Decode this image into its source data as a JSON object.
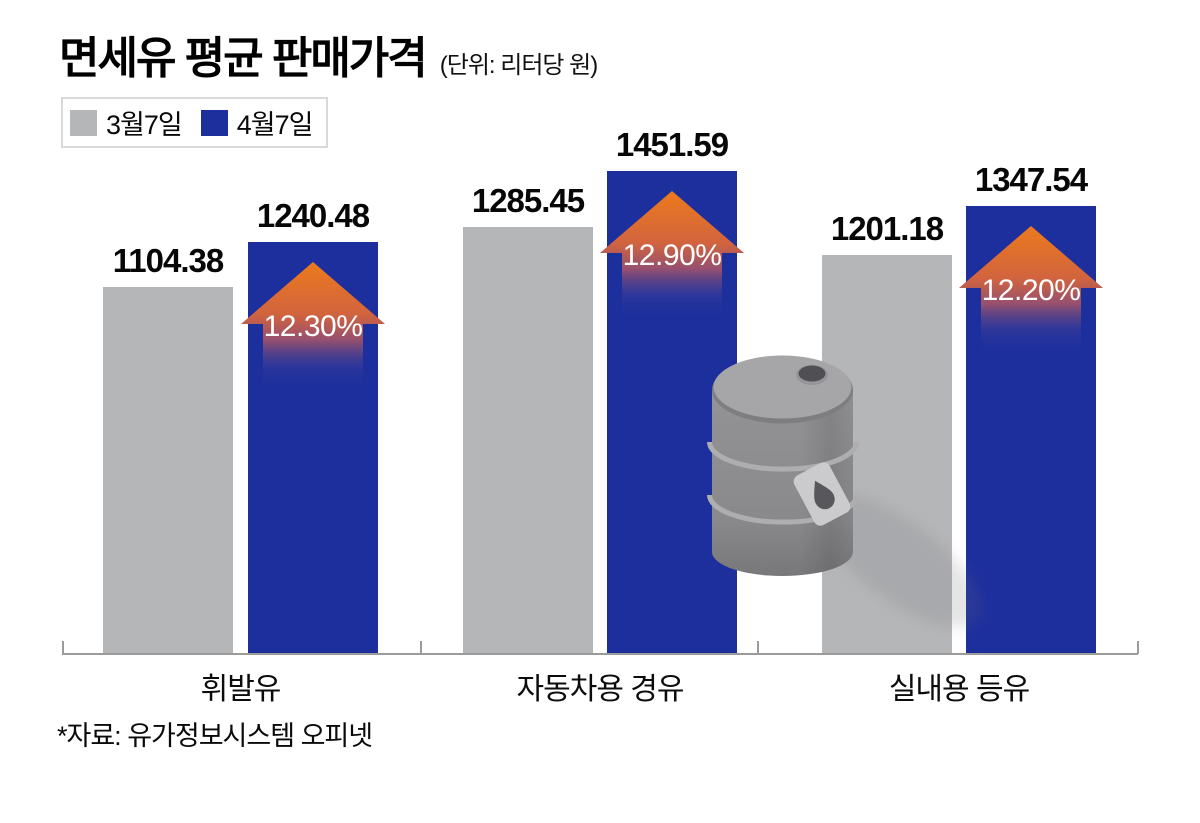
{
  "header": {
    "title": "면세유 평균 판매가격",
    "unit": "(단위: 리터당 원)"
  },
  "legend": {
    "items": [
      {
        "label": "3월7일",
        "color": "#b5b6b8"
      },
      {
        "label": "4월7일",
        "color": "#1d2f9d"
      }
    ]
  },
  "source_note": "*자료: 유가정보시스템 오피넷",
  "chart_data": {
    "type": "bar",
    "title": "면세유 평균 판매가격",
    "unit": "리터당 원",
    "categories": [
      "휘발유",
      "자동차용 경유",
      "실내용 등유"
    ],
    "series": [
      {
        "name": "3월7일",
        "color": "#b5b6b8",
        "values": [
          1104.38,
          1285.45,
          1201.18
        ]
      },
      {
        "name": "4월7일",
        "color": "#1d2f9d",
        "values": [
          1240.48,
          1451.59,
          1347.54
        ]
      }
    ],
    "change_percent": [
      "12.30%",
      "12.90%",
      "12.20%"
    ],
    "ylim": [
      0,
      1500
    ],
    "grid": false,
    "legend_position": "top-left",
    "value_labels": "above-bars",
    "arrow_color_top": "#ec741a",
    "arrow_fade_to": "#1d2f9d",
    "decoration": "oil-drum-illustration"
  }
}
